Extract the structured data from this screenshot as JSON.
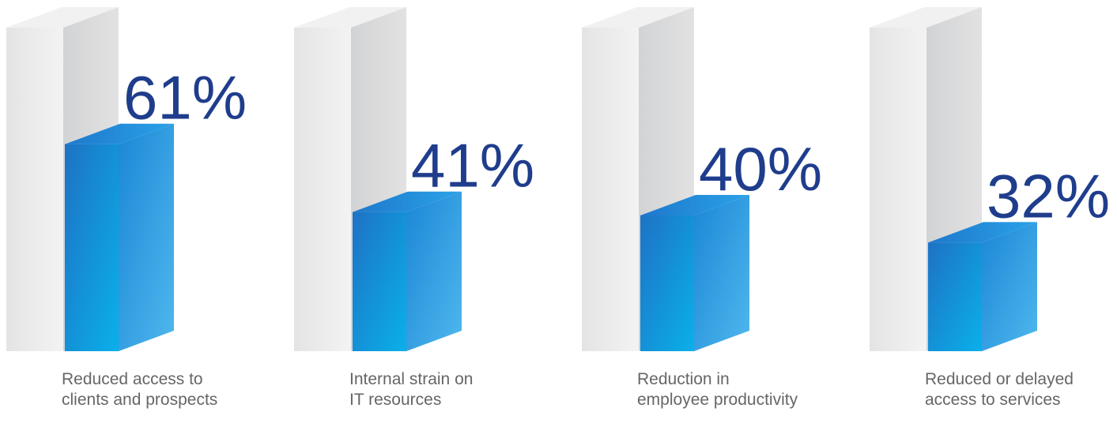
{
  "chart_data": {
    "type": "bar",
    "categories": [
      "Reduced access to\nclients and prospects",
      "Internal strain on\nIT resources",
      "Reduction in\nemployee productivity",
      "Reduced or delayed\naccess to services"
    ],
    "values": [
      61,
      41,
      40,
      32
    ],
    "data_labels": [
      "61%",
      "41%",
      "40%",
      "32%"
    ],
    "ylim": [
      0,
      100
    ],
    "title": "",
    "xlabel": "",
    "ylabel": "",
    "grid": false,
    "legend": "none",
    "colors": {
      "bar_front_dark": "#1e72c4",
      "bar_front_light": "#0ab0ea",
      "bar_side_dark": "#1b86d6",
      "bar_side_light": "#4fb8ee",
      "bar_top": "#1d8fe0",
      "ghost_front": "#ececec",
      "ghost_side": "#d9d9da",
      "label_value": "#1f3d8c",
      "label_category": "#666666"
    }
  }
}
